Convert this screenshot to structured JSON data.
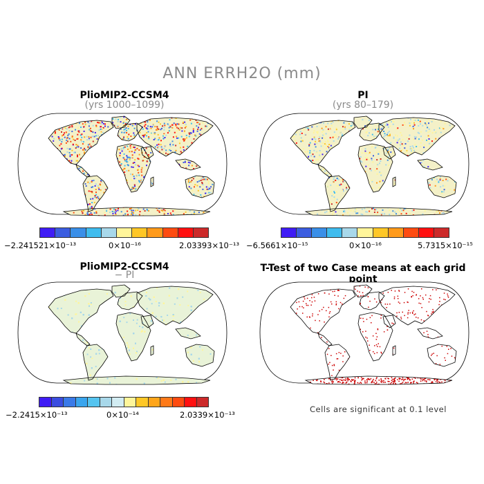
{
  "title": "ANN ERRH2O (mm)",
  "panels": [
    {
      "id": "p1",
      "title": "PlioMIP2-CCSM4",
      "subtitle": "(yrs 1000–1099)",
      "colorbar": {
        "min_label": "−2.241521×10⁻¹³",
        "mid_label": "0×10⁻¹⁶",
        "max_label": "2.03393×10⁻¹³",
        "colors": [
          "#3f1cf5",
          "#3b5de0",
          "#3a8fe8",
          "#3fbcee",
          "#a8d8ea",
          "#fff59a",
          "#fec726",
          "#ff9a1a",
          "#fe4b10",
          "#ff1010",
          "#cc2a2a"
        ]
      }
    },
    {
      "id": "p2",
      "title": "PI",
      "subtitle": "(yrs 80–179)",
      "colorbar": {
        "min_label": "−6.5661×10⁻¹⁵",
        "mid_label": "0×10⁻¹⁶",
        "max_label": "5.7315×10⁻¹⁵",
        "colors": [
          "#3f1cf5",
          "#3b5de0",
          "#3a8fe8",
          "#3fbcee",
          "#a8d8ea",
          "#fff59a",
          "#fec726",
          "#ff9a1a",
          "#fe4b10",
          "#ff1010",
          "#cc2a2a"
        ]
      }
    },
    {
      "id": "p3",
      "title": "PlioMIP2-CCSM4",
      "subtitle": "− PI",
      "colorbar": {
        "min_label": "−2.2415×10⁻¹³",
        "mid_label": "0×10⁻¹⁴",
        "max_label": "2.0339×10⁻¹³",
        "colors": [
          "#3f1cf5",
          "#3b4de0",
          "#3a7ae8",
          "#3aa5ee",
          "#55c4f0",
          "#a8d8ea",
          "#d2ecf2",
          "#fff59a",
          "#fec726",
          "#ffa51a",
          "#ff7a18",
          "#fe4b10",
          "#ff1010",
          "#cc2a2a"
        ]
      }
    },
    {
      "id": "p4",
      "title": "T-Test of two Case means at each grid point",
      "note": "Cells are significant at 0.1 level"
    }
  ],
  "colors": {
    "land_outline": "#000000",
    "title_grey": "#8a8a8a",
    "significance": "#cc0000"
  }
}
